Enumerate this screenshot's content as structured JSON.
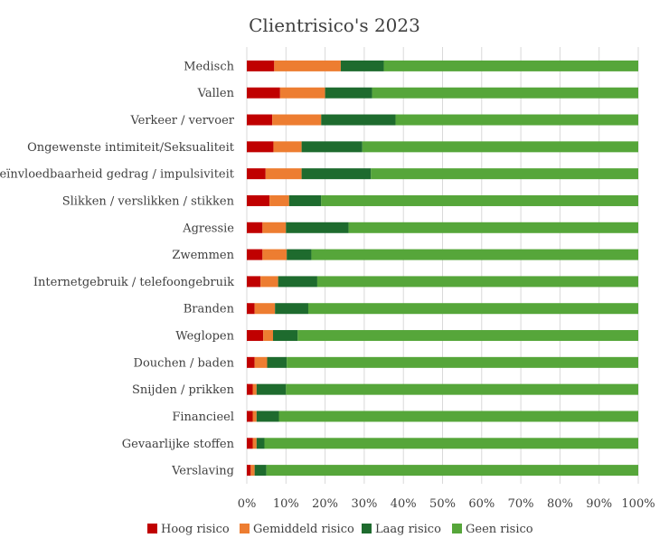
{
  "chart_data": {
    "type": "bar",
    "orientation": "horizontal",
    "stacked": "percent",
    "title": "Clientrisico's 2023",
    "categories": [
      "Medisch",
      "Vallen",
      "Verkeer / vervoer",
      "Ongewenste intimiteit/Seksualiteit",
      "Beïnvloedbaarheid gedrag / impulsiviteit",
      "Slikken / verslikken / stikken",
      "Agressie",
      "Zwemmen",
      "Internetgebruik / telefoongebruik",
      "Branden",
      "Weglopen",
      "Douchen / baden",
      "Snijden / prikken",
      "Financieel",
      "Gevaarlijke stoffen",
      "Verslaving"
    ],
    "series": [
      {
        "name": "Hoog risico",
        "color": "#c00000",
        "values": [
          7,
          8.5,
          6.5,
          6.8,
          4.8,
          5.8,
          4,
          4,
          3.5,
          2,
          4.2,
          2,
          1.5,
          1.5,
          1.5,
          1
        ]
      },
      {
        "name": "Gemiddeld risico",
        "color": "#ed7d31",
        "values": [
          17,
          11.5,
          12.5,
          7.2,
          9.2,
          5,
          6,
          6.2,
          4.5,
          5.2,
          2.5,
          3.2,
          1,
          1,
          1,
          1
        ]
      },
      {
        "name": "Laag risico",
        "color": "#1e6b2e",
        "values": [
          11,
          12,
          19,
          15.5,
          17.7,
          8.2,
          16,
          6.3,
          10,
          8.5,
          6.3,
          5,
          7.5,
          5.7,
          2,
          3
        ]
      },
      {
        "name": "Geen risico",
        "color": "#56a63a",
        "values": [
          65,
          68,
          62,
          70.5,
          68.3,
          81,
          74,
          83.5,
          82,
          84.3,
          87,
          89.8,
          90,
          91.8,
          95.5,
          95
        ]
      }
    ],
    "xlim": [
      0,
      100
    ],
    "x_ticks": [
      "0%",
      "10%",
      "20%",
      "30%",
      "40%",
      "50%",
      "60%",
      "70%",
      "80%",
      "90%",
      "100%"
    ],
    "grid": true,
    "legend_position": "bottom"
  }
}
